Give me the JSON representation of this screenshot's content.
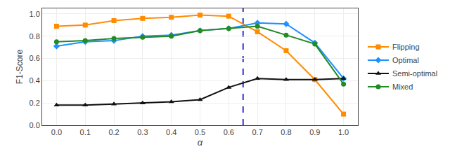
{
  "chart_data": {
    "type": "line",
    "x": [
      0.0,
      0.1,
      0.2,
      0.3,
      0.4,
      0.5,
      0.6,
      0.7,
      0.8,
      0.9,
      1.0
    ],
    "series": [
      {
        "name": "Flipping",
        "color": "#FF8C00",
        "marker": "square",
        "values": [
          0.89,
          0.9,
          0.94,
          0.96,
          0.97,
          0.99,
          0.98,
          0.84,
          0.67,
          0.41,
          0.1
        ]
      },
      {
        "name": "Optimal",
        "color": "#1E90FF",
        "marker": "diamond",
        "values": [
          0.71,
          0.75,
          0.76,
          0.8,
          0.81,
          0.85,
          0.87,
          0.92,
          0.91,
          0.74,
          0.42
        ]
      },
      {
        "name": "Semi-optimal",
        "color": "#111111",
        "marker": "triangle-up",
        "values": [
          0.18,
          0.18,
          0.19,
          0.2,
          0.21,
          0.23,
          0.34,
          0.42,
          0.41,
          0.41,
          0.42
        ]
      },
      {
        "name": "Mixed",
        "color": "#228B22",
        "marker": "circle",
        "values": [
          0.75,
          0.76,
          0.78,
          0.79,
          0.8,
          0.85,
          0.87,
          0.89,
          0.81,
          0.73,
          0.37
        ]
      }
    ],
    "vline": {
      "x": 0.65,
      "color": "#3333CC",
      "line_style": "dashed"
    },
    "x_label": "α",
    "y_label": "F1-Score",
    "xlim": [
      -0.05,
      1.05
    ],
    "ylim": [
      0.0,
      1.05
    ],
    "xticks": [
      {
        "value": 0.0,
        "label": "0.0"
      },
      0.1,
      0.2,
      0.3,
      0.4,
      0.5,
      0.6,
      0.7,
      0.8,
      0.9,
      {
        "value": 1.0,
        "label": "1.0"
      }
    ],
    "yticks": [
      {
        "value": 0.0,
        "label": "0.0"
      },
      0.2,
      0.4,
      0.6,
      0.8,
      {
        "value": 1.0,
        "label": "1.0"
      }
    ],
    "grid": true,
    "legend": "right"
  }
}
